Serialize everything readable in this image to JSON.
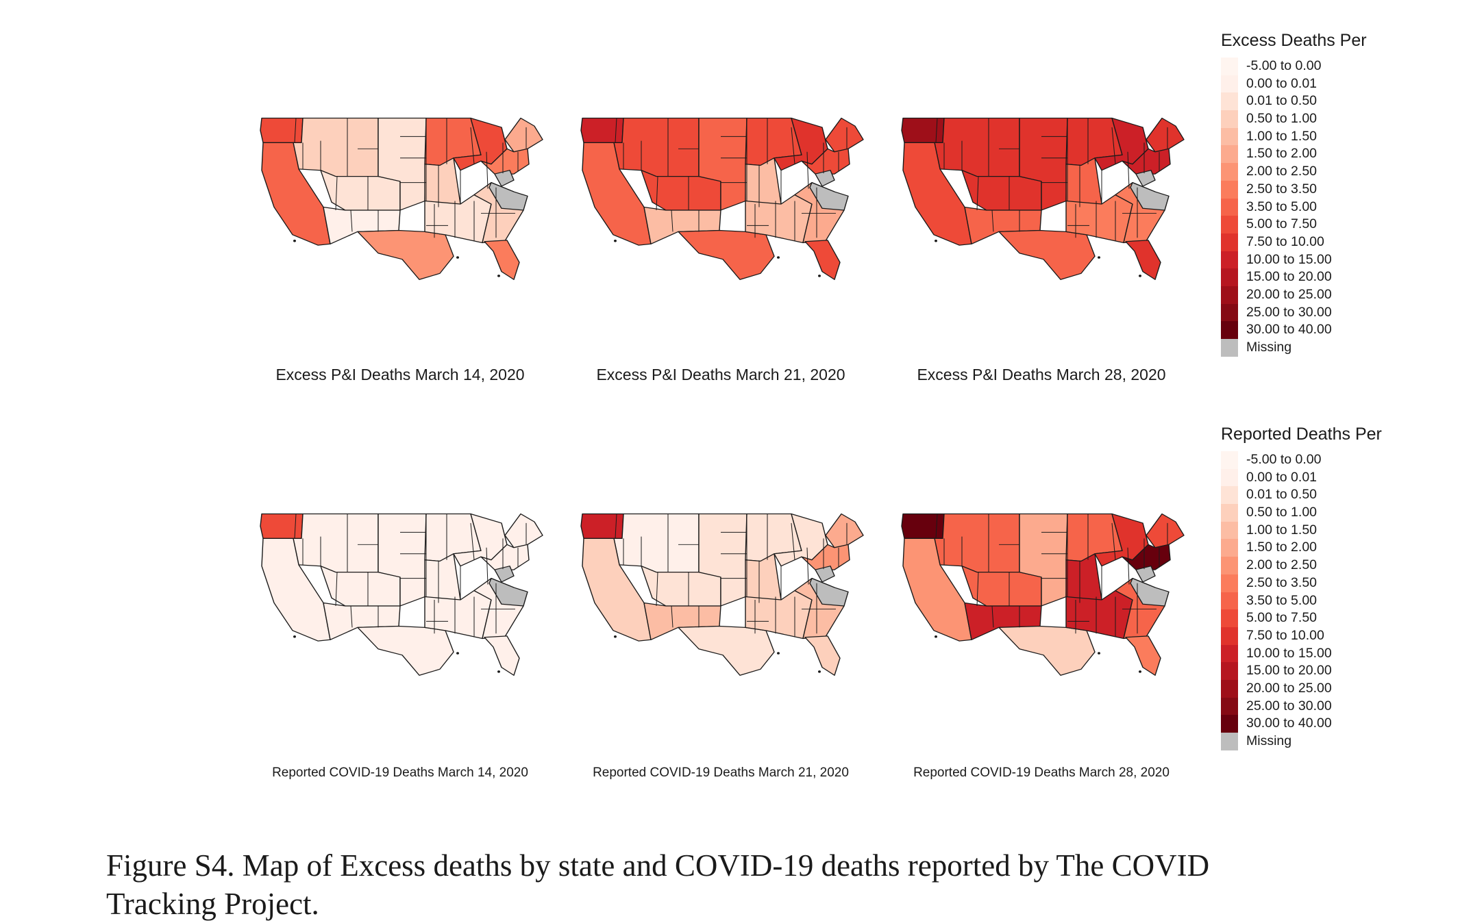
{
  "legends": {
    "excess": {
      "title": "Excess Deaths Per",
      "items": [
        {
          "label": "-5.00 to 0.00",
          "color": "#fff5f0"
        },
        {
          "label": "0.00 to 0.01",
          "color": "#fff0ea"
        },
        {
          "label": "0.01 to 0.50",
          "color": "#fee3d6"
        },
        {
          "label": "0.50 to 1.00",
          "color": "#fdd0bc"
        },
        {
          "label": "1.00 to 1.50",
          "color": "#fcbda4"
        },
        {
          "label": "1.50 to 2.00",
          "color": "#fcaa8e"
        },
        {
          "label": "2.00 to 2.50",
          "color": "#fc9474"
        },
        {
          "label": "2.50 to 3.50",
          "color": "#fb7c5c"
        },
        {
          "label": "3.50 to 5.00",
          "color": "#f6644a"
        },
        {
          "label": "5.00 to 7.50",
          "color": "#ee4a38"
        },
        {
          "label": "7.50 to 10.00",
          "color": "#e0332c"
        },
        {
          "label": "10.00 to 15.00",
          "color": "#cc2027"
        },
        {
          "label": "15.00 to 20.00",
          "color": "#b61620"
        },
        {
          "label": "20.00 to 25.00",
          "color": "#9e0f19"
        },
        {
          "label": "25.00 to 30.00",
          "color": "#850a14"
        },
        {
          "label": "30.00 to 40.00",
          "color": "#67000d"
        },
        {
          "label": "Missing",
          "color": "#bdbdbd"
        }
      ]
    },
    "reported": {
      "title": "Reported Deaths Per",
      "items": [
        {
          "label": "-5.00 to 0.00",
          "color": "#fff5f0"
        },
        {
          "label": "0.00 to 0.01",
          "color": "#fff0ea"
        },
        {
          "label": "0.01 to 0.50",
          "color": "#fee3d6"
        },
        {
          "label": "0.50 to 1.00",
          "color": "#fdd0bc"
        },
        {
          "label": "1.00 to 1.50",
          "color": "#fcbda4"
        },
        {
          "label": "1.50 to 2.00",
          "color": "#fcaa8e"
        },
        {
          "label": "2.00 to 2.50",
          "color": "#fc9474"
        },
        {
          "label": "2.50 to 3.50",
          "color": "#fb7c5c"
        },
        {
          "label": "3.50 to 5.00",
          "color": "#f6644a"
        },
        {
          "label": "5.00 to 7.50",
          "color": "#ee4a38"
        },
        {
          "label": "7.50 to 10.00",
          "color": "#e0332c"
        },
        {
          "label": "10.00 to 15.00",
          "color": "#cc2027"
        },
        {
          "label": "15.00 to 20.00",
          "color": "#b61620"
        },
        {
          "label": "20.00 to 25.00",
          "color": "#9e0f19"
        },
        {
          "label": "25.00 to 30.00",
          "color": "#850a14"
        },
        {
          "label": "30.00 to 40.00",
          "color": "#67000d"
        },
        {
          "label": "Missing",
          "color": "#bdbdbd"
        }
      ]
    }
  },
  "maps": {
    "excess": [
      {
        "title": "Excess P&I Deaths March 14, 2020",
        "regions": {
          "wa": 9,
          "nw": 3,
          "ca": 8,
          "mtn": 2,
          "sw": 1,
          "plains": 2,
          "tx": 6,
          "midn": 8,
          "mids": 3,
          "glakes": 9,
          "south": 2,
          "se": 3,
          "fl": 7,
          "ne": 5,
          "midatl": 7,
          "wv": 16,
          "nc": 16
        }
      },
      {
        "title": "Excess P&I Deaths March 21, 2020",
        "regions": {
          "wa": 11,
          "nw": 9,
          "ca": 8,
          "mtn": 9,
          "sw": 4,
          "plains": 8,
          "tx": 8,
          "midn": 9,
          "mids": 4,
          "glakes": 10,
          "south": 4,
          "se": 5,
          "fl": 9,
          "ne": 9,
          "midatl": 9,
          "wv": 16,
          "nc": 16
        }
      },
      {
        "title": "Excess P&I Deaths March 28, 2020",
        "regions": {
          "wa": 13,
          "nw": 10,
          "ca": 9,
          "mtn": 10,
          "sw": 8,
          "plains": 10,
          "tx": 8,
          "midn": 10,
          "mids": 8,
          "glakes": 11,
          "south": 7,
          "se": 7,
          "fl": 10,
          "ne": 10,
          "midatl": 11,
          "wv": 16,
          "nc": 16
        }
      }
    ],
    "reported": [
      {
        "title": "Reported COVID-19 Deaths March 14, 2020",
        "regions": {
          "wa": 9,
          "nw": 1,
          "ca": 1,
          "mtn": 1,
          "sw": 1,
          "plains": 1,
          "tx": 1,
          "midn": 1,
          "mids": 1,
          "glakes": 1,
          "south": 1,
          "se": 1,
          "fl": 1,
          "ne": 1,
          "midatl": 1,
          "wv": 16,
          "nc": 16
        }
      },
      {
        "title": "Reported COVID-19 Deaths March 21, 2020",
        "regions": {
          "wa": 11,
          "nw": 1,
          "ca": 3,
          "mtn": 2,
          "sw": 4,
          "plains": 2,
          "tx": 2,
          "midn": 2,
          "mids": 3,
          "glakes": 2,
          "south": 3,
          "se": 4,
          "fl": 3,
          "ne": 5,
          "midatl": 6,
          "wv": 16,
          "nc": 16
        }
      },
      {
        "title": "Reported COVID-19 Deaths March 28, 2020",
        "regions": {
          "wa": 15,
          "nw": 8,
          "ca": 6,
          "mtn": 8,
          "sw": 11,
          "plains": 5,
          "tx": 3,
          "midn": 8,
          "mids": 11,
          "glakes": 10,
          "south": 11,
          "se": 8,
          "fl": 7,
          "ne": 9,
          "midatl": 15,
          "wv": 16,
          "nc": 16
        }
      }
    ]
  },
  "caption": {
    "line1": "Figure S4. Map of Excess deaths by state and COVID-19 deaths reported by The COVID",
    "line2": "Tracking Project."
  }
}
